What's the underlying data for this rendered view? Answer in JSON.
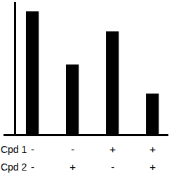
{
  "chart_data": {
    "type": "bar",
    "categories": [
      null,
      null,
      null,
      null
    ],
    "values": [
      93,
      53,
      78,
      31
    ],
    "color": "#000000",
    "ylim": [
      0,
      100
    ],
    "yticks": [],
    "grid": false,
    "tick_labels": false,
    "condition_table": {
      "rows": [
        {
          "label": "Cpd 1",
          "values": [
            "-",
            "-",
            "+",
            "+"
          ]
        },
        {
          "label": "Cpd 2",
          "values": [
            "-",
            "+",
            "-",
            "+"
          ]
        }
      ]
    }
  }
}
